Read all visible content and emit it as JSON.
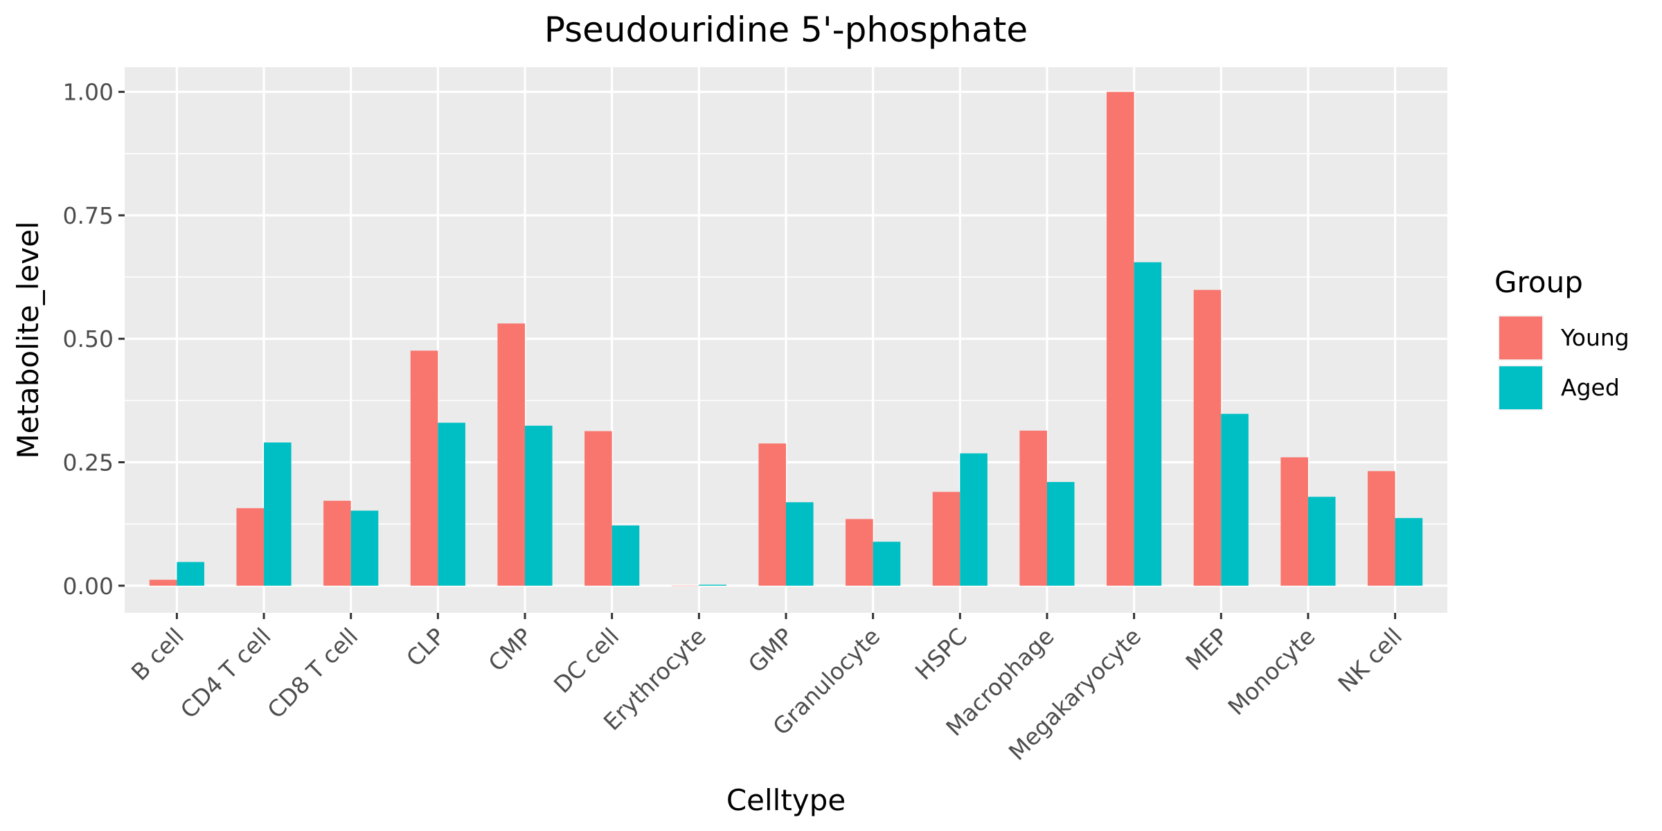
{
  "chart_data": {
    "type": "bar",
    "title": "Pseudouridine 5'-phosphate",
    "xlabel": "Celltype",
    "ylabel": "Metabolite_level",
    "categories": [
      "B cell",
      "CD4 T cell",
      "CD8 T cell",
      "CLP",
      "CMP",
      "DC cell",
      "Erythrocyte",
      "GMP",
      "Granulocyte",
      "HSPC",
      "Macrophage",
      "Megakaryocyte",
      "MEP",
      "Monocyte",
      "NK cell"
    ],
    "series": [
      {
        "name": "Young",
        "color": "#F8766D",
        "values": [
          0.012,
          0.157,
          0.172,
          0.476,
          0.531,
          0.313,
          0.0,
          0.288,
          0.135,
          0.19,
          0.314,
          1.0,
          0.599,
          0.26,
          0.232
        ]
      },
      {
        "name": "Aged",
        "color": "#00BFC4",
        "values": [
          0.048,
          0.29,
          0.152,
          0.33,
          0.324,
          0.122,
          0.002,
          0.169,
          0.089,
          0.268,
          0.21,
          0.655,
          0.348,
          0.18,
          0.137
        ]
      }
    ],
    "ylim": [
      -0.055,
      1.05
    ],
    "yticks": [
      0.0,
      0.25,
      0.5,
      0.75,
      1.0
    ],
    "ytick_labels": [
      "0.00",
      "0.25",
      "0.50",
      "0.75",
      "1.00"
    ],
    "legend": {
      "title": "Group",
      "position": "right"
    },
    "grid": true,
    "panel_color": "#EBEBEB"
  }
}
